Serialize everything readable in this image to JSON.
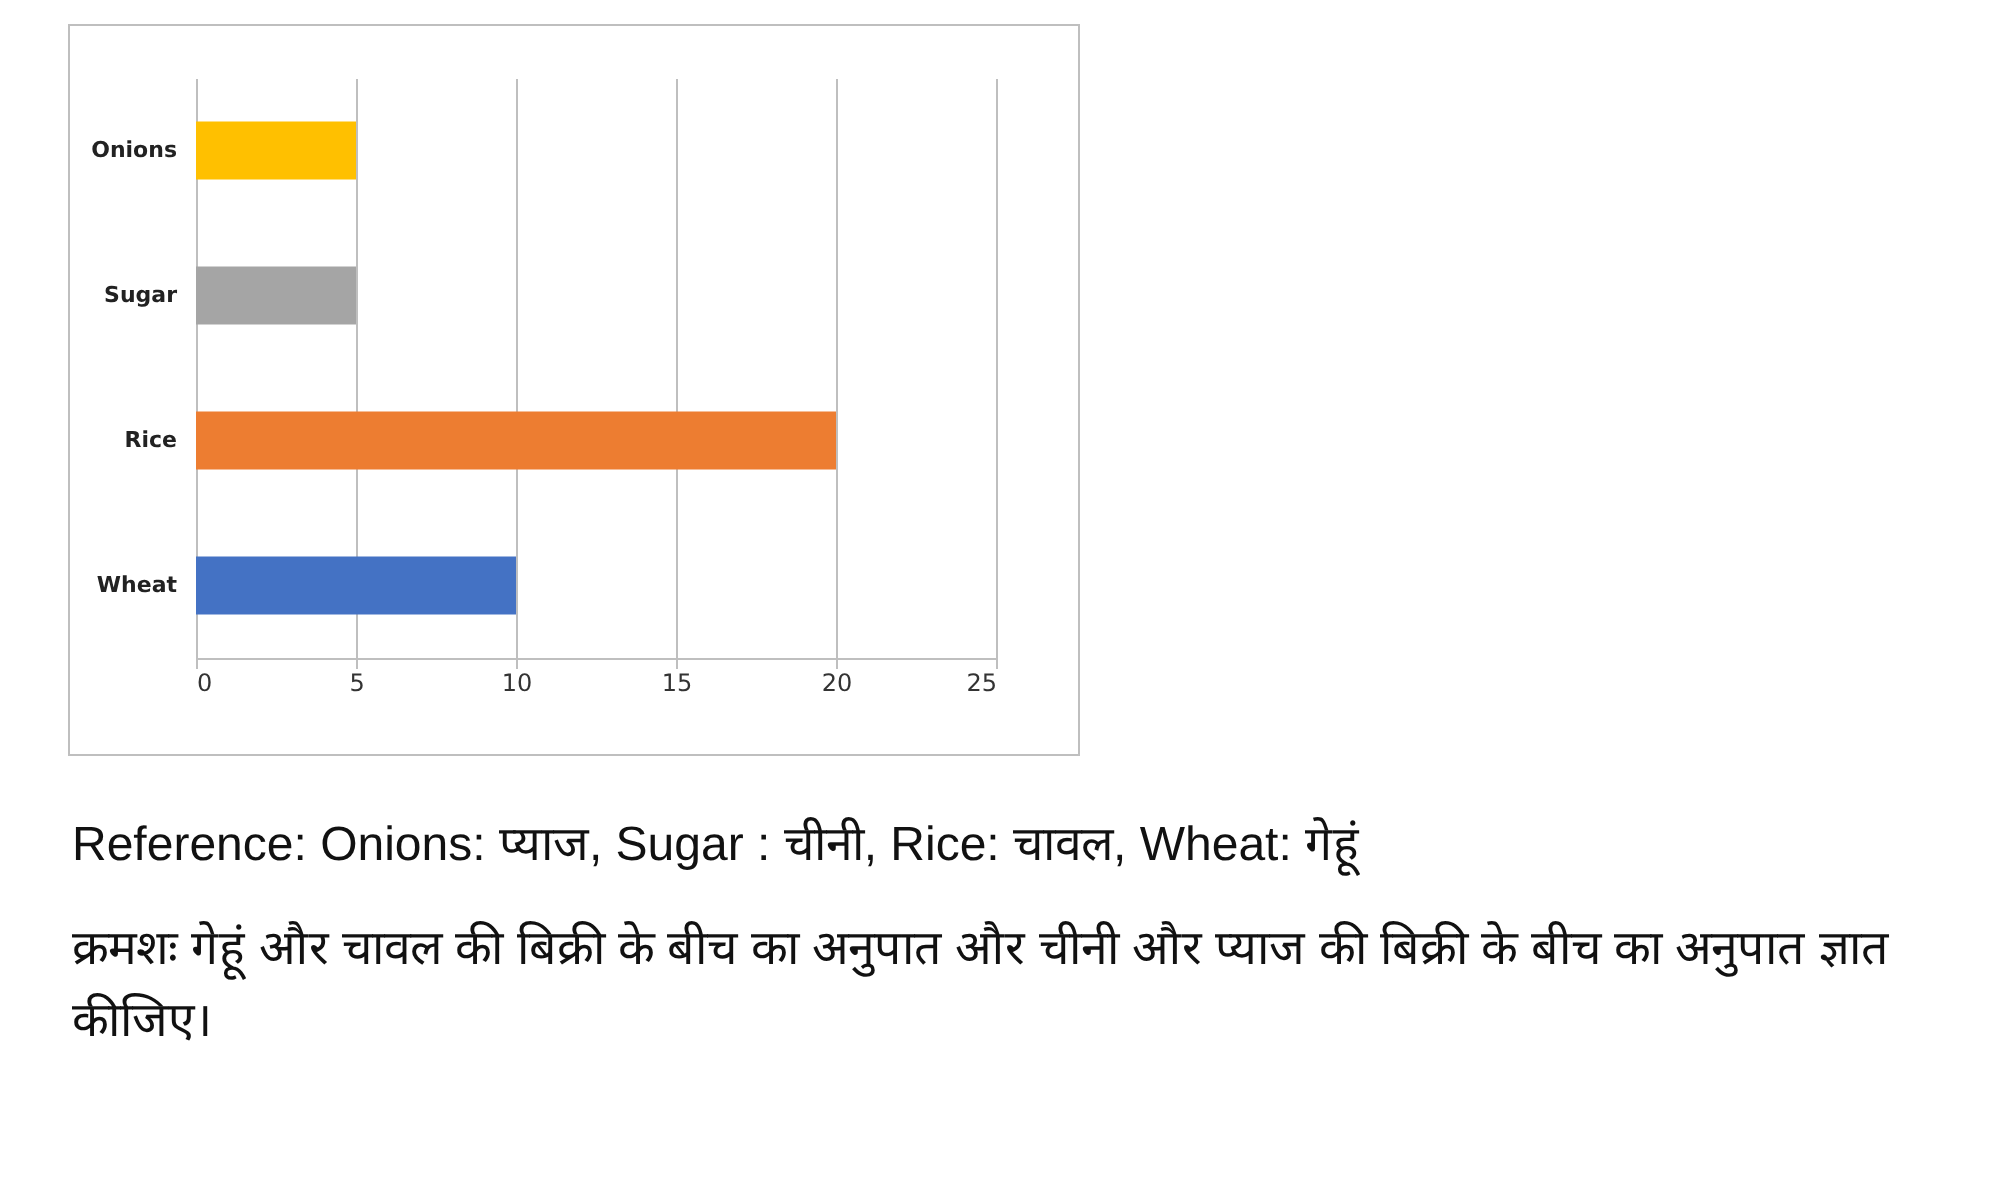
{
  "chart_data": {
    "type": "bar",
    "orientation": "horizontal",
    "categories": [
      "Onions",
      "Sugar",
      "Rice",
      "Wheat"
    ],
    "values": [
      5,
      5,
      20,
      10
    ],
    "colors": [
      "#ffc000",
      "#a5a5a5",
      "#ed7d31",
      "#4472c4"
    ],
    "xlim": [
      0,
      25
    ],
    "xticks": [
      0,
      5,
      10,
      15,
      20,
      25
    ],
    "grid": "x",
    "annotations": [
      "Reference: Onions: प्याज, Sugar : चीनी, Rice: चावल, Wheat: गेहूं",
      "क्रमशः गेहूं और चावल की बिक्री के बीच का अनुपात और चीनी और प्याज की बिक्री के बीच का अनुपात ज्ञात कीजिए।"
    ]
  }
}
